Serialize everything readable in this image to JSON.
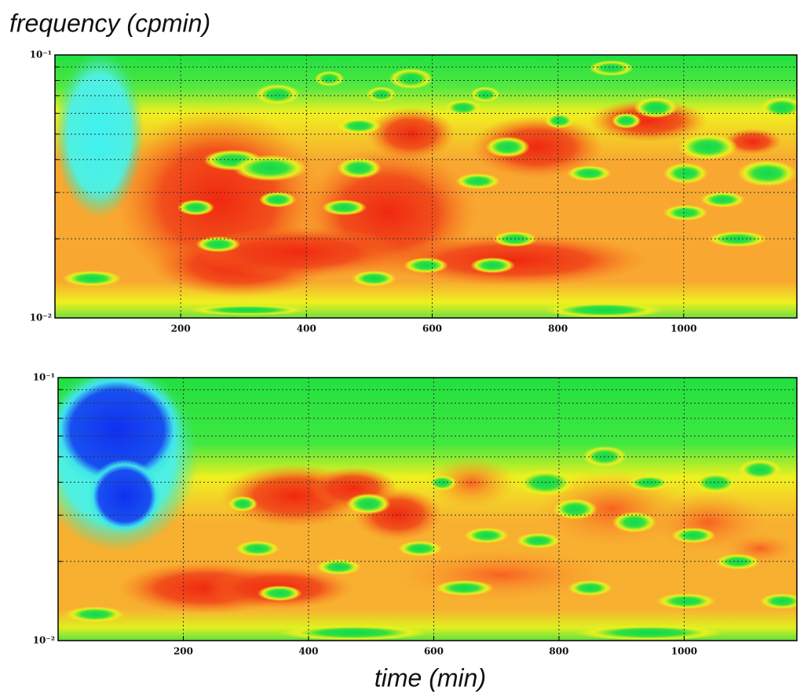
{
  "chart_data": [
    {
      "type": "heatmap",
      "ylabel": "frequency (cpmin)",
      "xlim": [
        0,
        1180
      ],
      "xticks": [
        200,
        400,
        600,
        800,
        1000
      ],
      "ylim": [
        0.01,
        0.1
      ],
      "yscale": "log",
      "yticks": [
        {
          "value": 0.01,
          "label": "10⁻²"
        },
        {
          "value": 0.1,
          "label": "10⁻¹"
        }
      ],
      "minor_yticks": [
        0.02,
        0.03,
        0.04,
        0.05,
        0.06,
        0.07,
        0.08,
        0.09
      ],
      "grid": true
    },
    {
      "type": "heatmap",
      "xlabel": "time (min)",
      "xlim": [
        0,
        1180
      ],
      "xticks": [
        200,
        400,
        600,
        800,
        1000
      ],
      "ylim": [
        0.01,
        0.1
      ],
      "yscale": "log",
      "yticks": [
        {
          "value": 0.01,
          "label": "10⁻²"
        },
        {
          "value": 0.1,
          "label": "10⁻¹"
        }
      ],
      "minor_yticks": [
        0.02,
        0.03,
        0.04,
        0.05,
        0.06,
        0.07,
        0.08,
        0.09
      ],
      "grid": true
    }
  ]
}
